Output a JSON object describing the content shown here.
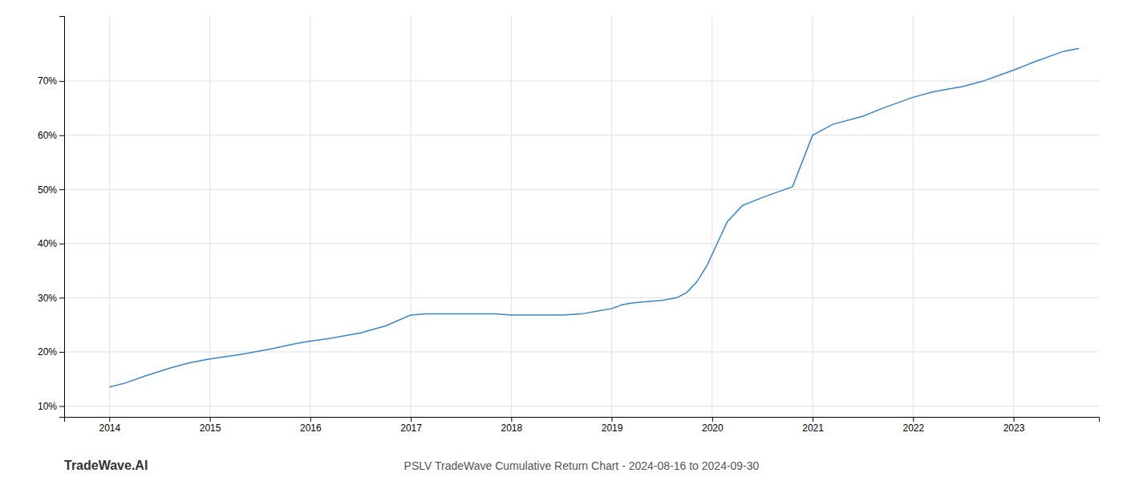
{
  "chart_data": {
    "type": "line",
    "title": "PSLV TradeWave Cumulative Return Chart - 2024-08-16 to 2024-09-30",
    "annotations": [
      {
        "text": "TradeWave.AI"
      }
    ],
    "x": [
      2014.0,
      2014.15,
      2014.35,
      2014.6,
      2014.8,
      2015.0,
      2015.3,
      2015.6,
      2015.85,
      2016.0,
      2016.2,
      2016.5,
      2016.75,
      2017.0,
      2017.15,
      2017.3,
      2017.5,
      2017.7,
      2017.85,
      2018.0,
      2018.2,
      2018.5,
      2018.7,
      2018.85,
      2019.0,
      2019.05,
      2019.1,
      2019.2,
      2019.3,
      2019.5,
      2019.65,
      2019.75,
      2019.85,
      2019.95,
      2020.05,
      2020.15,
      2020.3,
      2020.5,
      2020.65,
      2020.8,
      2021.0,
      2021.2,
      2021.5,
      2021.7,
      2022.0,
      2022.2,
      2022.5,
      2022.7,
      2022.85,
      2023.0,
      2023.2,
      2023.5,
      2023.65
    ],
    "values": [
      13.5,
      14.2,
      15.5,
      17.0,
      18.0,
      18.7,
      19.5,
      20.5,
      21.5,
      22.0,
      22.5,
      23.5,
      24.8,
      26.8,
      27.0,
      27.0,
      27.0,
      27.0,
      27.0,
      26.8,
      26.8,
      26.8,
      27.0,
      27.5,
      28.0,
      28.3,
      28.7,
      29.0,
      29.2,
      29.5,
      30.0,
      31.0,
      33.0,
      36.0,
      40.0,
      44.0,
      47.0,
      48.5,
      49.5,
      50.5,
      60.0,
      62.0,
      63.5,
      65.0,
      67.0,
      68.0,
      69.0,
      70.0,
      71.0,
      72.0,
      73.5,
      75.5,
      76.0
    ],
    "color": "#3a86c8",
    "xlim": [
      2013.55,
      2023.85
    ],
    "xticks": [
      2014,
      2015,
      2016,
      2017,
      2018,
      2019,
      2020,
      2021,
      2022,
      2023
    ],
    "ylim": [
      8,
      82
    ],
    "yticks": [
      {
        "value": 10,
        "label": "10%"
      },
      {
        "value": 20,
        "label": "20%"
      },
      {
        "value": 30,
        "label": "30%"
      },
      {
        "value": 40,
        "label": "40%"
      },
      {
        "value": 50,
        "label": "50%"
      },
      {
        "value": 60,
        "label": "60%"
      },
      {
        "value": 70,
        "label": "70%"
      }
    ],
    "grid": true
  }
}
